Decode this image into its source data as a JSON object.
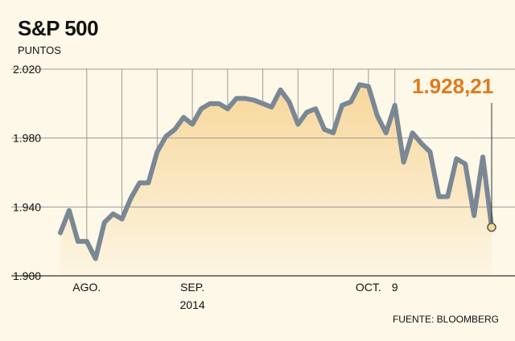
{
  "colors": {
    "background": "#fdf8e7",
    "line": "#7a8895",
    "fill_top": "#f7d79b",
    "fill_bottom": "#fdf5e3",
    "accent": "#e07a1e",
    "grid": "#9a9a9a"
  },
  "chart_data": {
    "type": "area",
    "title": "S&P 500",
    "ylabel": "PUNTOS",
    "source": "FUENTE: BLOOMBERG",
    "ylim": [
      1900,
      2020
    ],
    "yticks": [
      "1.900",
      "1.940",
      "1.980",
      "2.020"
    ],
    "ytick_values": [
      1900,
      1940,
      1980,
      2020
    ],
    "xtick_labels": [
      {
        "label": "AGO.",
        "index": 3
      },
      {
        "label": "SEP.",
        "sublabel": "2014",
        "index": 15
      },
      {
        "label": "OCT.",
        "index": 35
      },
      {
        "label": "9",
        "index": 38
      }
    ],
    "grid_indices": [
      3,
      7,
      11,
      15,
      19,
      23,
      27,
      31,
      35,
      38
    ],
    "values": [
      1925,
      1938,
      1920,
      1920,
      1910,
      1931,
      1936,
      1933,
      1945,
      1954,
      1954,
      1972,
      1981,
      1985,
      1992,
      1988,
      1997,
      2000,
      2000,
      1997,
      2003,
      2003,
      2002,
      2000,
      1998,
      2008,
      2001,
      1988,
      1995,
      1997,
      1985,
      1983,
      1999,
      2001,
      2011,
      2010,
      1993,
      1983,
      1999,
      1966,
      1983,
      1977,
      1972,
      1946,
      1946,
      1968,
      1965,
      1935,
      1969,
      1928.21
    ],
    "last_value_label": "1.928,21"
  }
}
